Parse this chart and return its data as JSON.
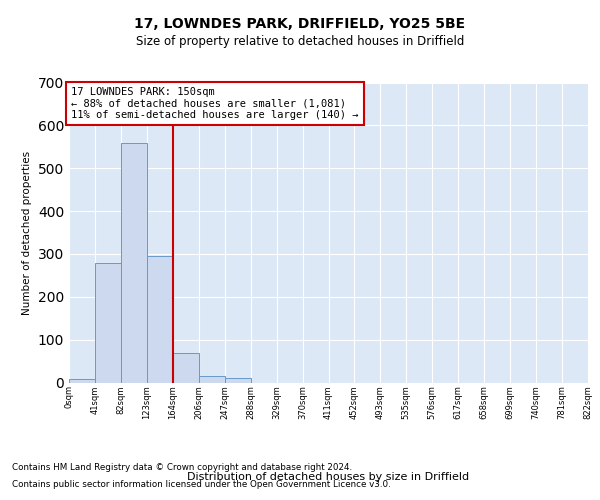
{
  "title": "17, LOWNDES PARK, DRIFFIELD, YO25 5BE",
  "subtitle": "Size of property relative to detached houses in Driffield",
  "xlabel": "Distribution of detached houses by size in Driffield",
  "ylabel": "Number of detached properties",
  "bin_labels": [
    "0sqm",
    "41sqm",
    "82sqm",
    "123sqm",
    "164sqm",
    "206sqm",
    "247sqm",
    "288sqm",
    "329sqm",
    "370sqm",
    "411sqm",
    "452sqm",
    "493sqm",
    "535sqm",
    "576sqm",
    "617sqm",
    "658sqm",
    "699sqm",
    "740sqm",
    "781sqm",
    "822sqm"
  ],
  "bar_values": [
    8,
    280,
    560,
    295,
    68,
    15,
    10,
    0,
    0,
    0,
    0,
    0,
    0,
    0,
    0,
    0,
    0,
    0,
    0,
    0
  ],
  "bar_color": "#ccd9ee",
  "bar_edge_color": "#6699cc",
  "ylim": [
    0,
    700
  ],
  "yticks": [
    0,
    100,
    200,
    300,
    400,
    500,
    600,
    700
  ],
  "red_line_x": 4.0,
  "annotation_text": "17 LOWNDES PARK: 150sqm\n← 88% of detached houses are smaller (1,081)\n11% of semi-detached houses are larger (140) →",
  "annotation_box_edge_color": "#cc0000",
  "bg_color": "#dce8f5",
  "grid_color": "#ffffff",
  "footer_line1": "Contains HM Land Registry data © Crown copyright and database right 2024.",
  "footer_line2": "Contains public sector information licensed under the Open Government Licence v3.0."
}
